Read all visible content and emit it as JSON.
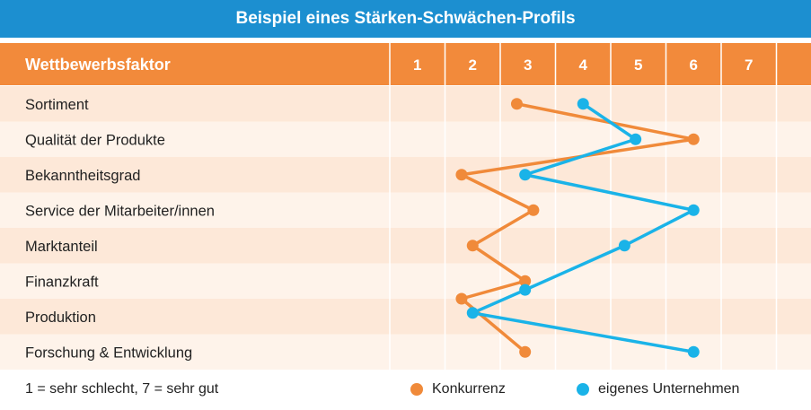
{
  "title": "Beispiel eines Stärken-Schwächen-Profils",
  "chart_data": {
    "type": "line",
    "header_label": "Wettbewerbsfaktor",
    "scale": [
      "1",
      "2",
      "3",
      "4",
      "5",
      "6",
      "7"
    ],
    "categories": [
      "Sortiment",
      "Qualität der Produkte",
      "Bekanntheitsgrad",
      "Service der Mitarbeiter/innen",
      "Marktanteil",
      "Finanzkraft",
      "Produktion",
      "Forschung & Entwicklung"
    ],
    "xlim": [
      1,
      7
    ],
    "series": [
      {
        "name": "Konkurrenz",
        "color": "#f08a3a",
        "points": [
          {
            "row": 0,
            "value": 2.8
          },
          {
            "row": 1,
            "value": 6.0
          },
          {
            "row": 2,
            "value": 1.8
          },
          {
            "row": 3,
            "value": 3.1
          },
          {
            "row": 4,
            "value": 2.0
          },
          {
            "row": 5,
            "value": 2.95
          },
          {
            "row": 5.5,
            "value": 1.8
          },
          {
            "row": 7,
            "value": 2.95
          }
        ]
      },
      {
        "name": "eigenes Unternehmen",
        "color": "#1ab3e8",
        "points": [
          {
            "row": 0,
            "value": 4.0
          },
          {
            "row": 1,
            "value": 4.95
          },
          {
            "row": 2,
            "value": 2.95
          },
          {
            "row": 3,
            "value": 6.0
          },
          {
            "row": 4,
            "value": 4.75
          },
          {
            "row": 5.25,
            "value": 2.95
          },
          {
            "row": 5.9,
            "value": 2.0
          },
          {
            "row": 7,
            "value": 6.0
          }
        ]
      }
    ],
    "legend_note": "1 = sehr schlecht, 7 = sehr gut",
    "legend_position": "bottom"
  },
  "colors": {
    "title_bg": "#1c8fd0",
    "header_bg": "#f28a3b",
    "row_dark": "#fde8d8",
    "row_light": "#fef3ea",
    "grid": "#ffffff"
  }
}
